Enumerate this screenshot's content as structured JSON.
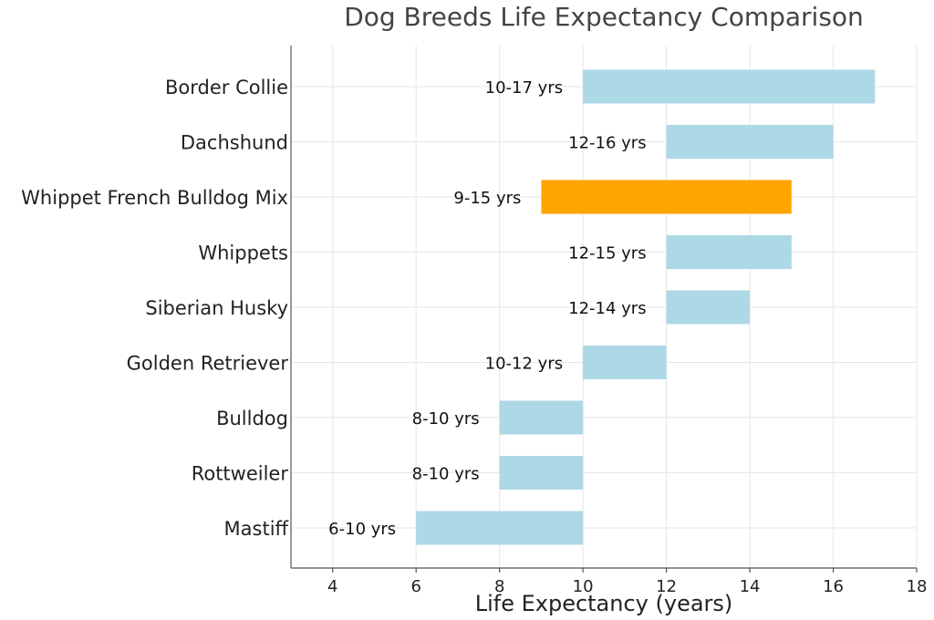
{
  "chart_data": {
    "type": "bar",
    "orientation": "horizontal-range",
    "title": "Dog Breeds Life Expectancy Comparison",
    "xlabel": "Life Expectancy (years)",
    "ylabel": "",
    "xlim": [
      3,
      18
    ],
    "xticks": [
      4,
      6,
      8,
      10,
      12,
      14,
      16,
      18
    ],
    "grid": true,
    "colors": {
      "default": "#add8e6",
      "highlight": "#ffa500"
    },
    "categories": [
      "Border Collie",
      "Dachshund",
      "Whippet French Bulldog Mix",
      "Whippets",
      "Siberian Husky",
      "Golden Retriever",
      "Bulldog",
      "Rottweiler",
      "Mastiff"
    ],
    "ranges": [
      {
        "min": 10,
        "max": 17,
        "label": "10-17 yrs",
        "highlight": false
      },
      {
        "min": 12,
        "max": 16,
        "label": "12-16 yrs",
        "highlight": false
      },
      {
        "min": 9,
        "max": 15,
        "label": "9-15 yrs",
        "highlight": true
      },
      {
        "min": 12,
        "max": 15,
        "label": "12-15 yrs",
        "highlight": false
      },
      {
        "min": 12,
        "max": 14,
        "label": "12-14 yrs",
        "highlight": false
      },
      {
        "min": 10,
        "max": 12,
        "label": "10-12 yrs",
        "highlight": false
      },
      {
        "min": 8,
        "max": 10,
        "label": "8-10 yrs",
        "highlight": false
      },
      {
        "min": 8,
        "max": 10,
        "label": "8-10 yrs",
        "highlight": false
      },
      {
        "min": 6,
        "max": 10,
        "label": "6-10 yrs",
        "highlight": false
      }
    ]
  }
}
